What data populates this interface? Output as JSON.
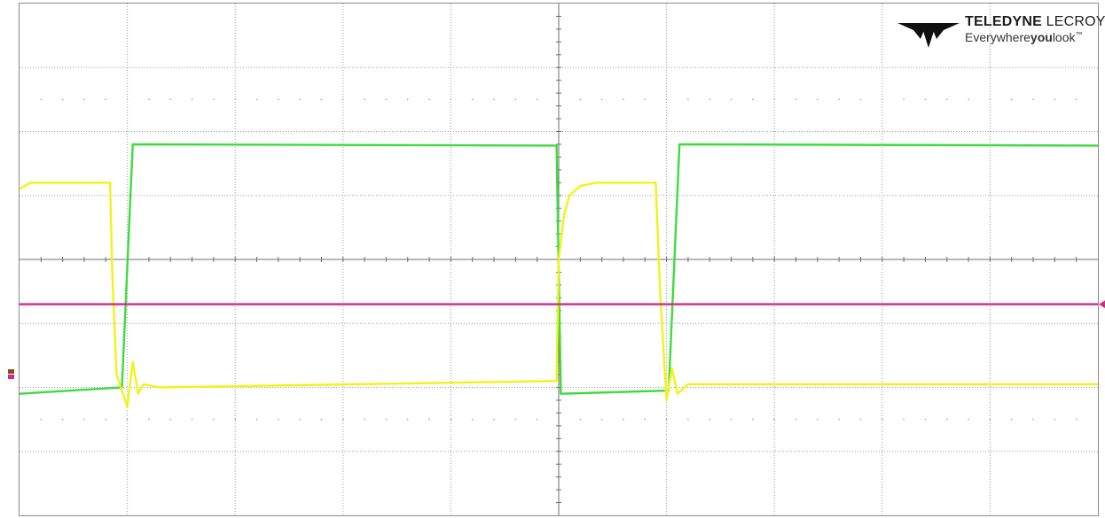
{
  "brand": {
    "name_bold": "TELEDYNE",
    "name_light": "LECROY",
    "tag_a": "Everywhere",
    "tag_b": "you",
    "tag_c": "look",
    "tm": "™"
  },
  "chart_data": {
    "type": "line",
    "grid": true,
    "grid_divisions": {
      "x": 10,
      "y": 8
    },
    "xlim": [
      0,
      10
    ],
    "ylim": [
      -4,
      4
    ],
    "units": "divisions",
    "series": [
      {
        "color": "#3ddc3d",
        "x": [
          0,
          0.95,
          1.05,
          4.98,
          5.02,
          6.02,
          6.12,
          10
        ],
        "y": [
          -2.1,
          -2.0,
          1.8,
          1.78,
          -2.1,
          -2.05,
          1.8,
          1.78
        ]
      },
      {
        "color": "#f2f21a",
        "x": [
          0,
          0.1,
          0.84,
          0.86,
          0.9,
          1.0,
          1.05,
          1.1,
          1.15,
          1.3,
          4.98,
          5.0,
          5.05,
          5.1,
          5.2,
          5.35,
          5.9,
          5.94,
          6.0,
          6.05,
          6.1,
          6.2,
          10
        ],
        "y": [
          1.1,
          1.2,
          1.2,
          -0.2,
          -1.8,
          -2.3,
          -1.6,
          -2.1,
          -1.95,
          -2.0,
          -1.9,
          0.0,
          0.7,
          1.0,
          1.15,
          1.2,
          1.2,
          -0.5,
          -2.2,
          -1.7,
          -2.1,
          -1.95,
          -1.95
        ]
      },
      {
        "color": "#d2288c",
        "x": [
          0,
          10
        ],
        "y": [
          -0.7,
          -0.7
        ]
      }
    ],
    "markers": {
      "offset_right_color": "#d2288c",
      "left_channel_colors": [
        "#d2288c",
        "#8a4a20"
      ]
    }
  }
}
